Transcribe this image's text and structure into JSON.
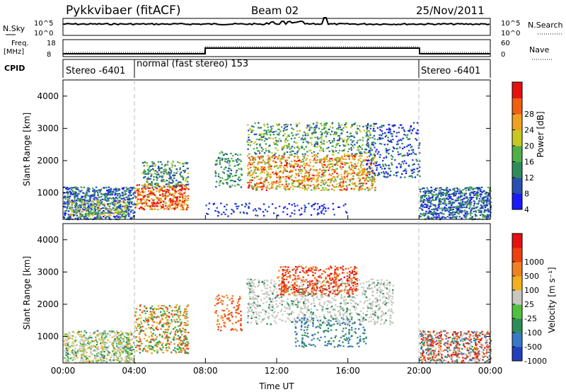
{
  "header": {
    "station": "Pykkvibaer (fitACF)",
    "beam": "Beam 02",
    "date": "25/Nov/2011"
  },
  "strip_labels": {
    "nsky": "N.Sky",
    "nsky_ticks": [
      "10^5",
      "10^0"
    ],
    "nsearch": "N.Search",
    "nsearch_ticks": [
      "10^5",
      "10^0"
    ],
    "freq": [
      "Freq.",
      "[MHz]"
    ],
    "freq_ticks": [
      "18",
      "8"
    ],
    "nave": "Nave",
    "nave_ticks": [
      "60",
      "0"
    ],
    "cpid": "CPID"
  },
  "cpid_segments": [
    {
      "label": "Stereo -6401",
      "start_hour": 0,
      "end_hour": 4.0
    },
    {
      "label": "normal (fast stereo) 153",
      "start_hour": 4.0,
      "end_hour": 20.0
    },
    {
      "label": "Stereo -6401",
      "start_hour": 20.0,
      "end_hour": 24.0
    }
  ],
  "chart_data": [
    {
      "type": "heatmap",
      "panel": "power",
      "ylabel": "Slant Range [km]",
      "ylim": [
        180,
        4500
      ],
      "yticks": [
        "1000",
        "2000",
        "3000",
        "4000"
      ],
      "xlim": [
        "00:00",
        "24:00"
      ],
      "colorbar": {
        "label": "Power [dB]",
        "ticks": [
          "28",
          "24",
          "20",
          "16",
          "12",
          "8",
          "4"
        ],
        "colors": [
          "#1a1aff",
          "#2850b0",
          "#2e8c5a",
          "#4fb04a",
          "#c8c820",
          "#f0a020",
          "#f06010",
          "#e81010"
        ]
      }
    },
    {
      "type": "heatmap",
      "panel": "velocity",
      "ylabel": "Slant Range [km]",
      "ylim": [
        180,
        4500
      ],
      "yticks": [
        "1000",
        "2000",
        "3000",
        "4000"
      ],
      "xlim": [
        "00:00",
        "24:00"
      ],
      "colorbar": {
        "label": "Velocity [m s⁻¹]",
        "ticks": [
          "1000",
          "500",
          "100",
          "25",
          "-25",
          "-100",
          "-500",
          "-1000"
        ],
        "colors": [
          "#2040c0",
          "#3a78c8",
          "#2e8c5a",
          "#50c040",
          "#c8c8c0",
          "#f0b020",
          "#f08020",
          "#f04010",
          "#e81010"
        ]
      }
    }
  ],
  "xaxis": {
    "ticks": [
      "00:00",
      "04:00",
      "08:00",
      "12:00",
      "16:00",
      "20:00",
      "00:00"
    ],
    "label": "Time UT"
  }
}
